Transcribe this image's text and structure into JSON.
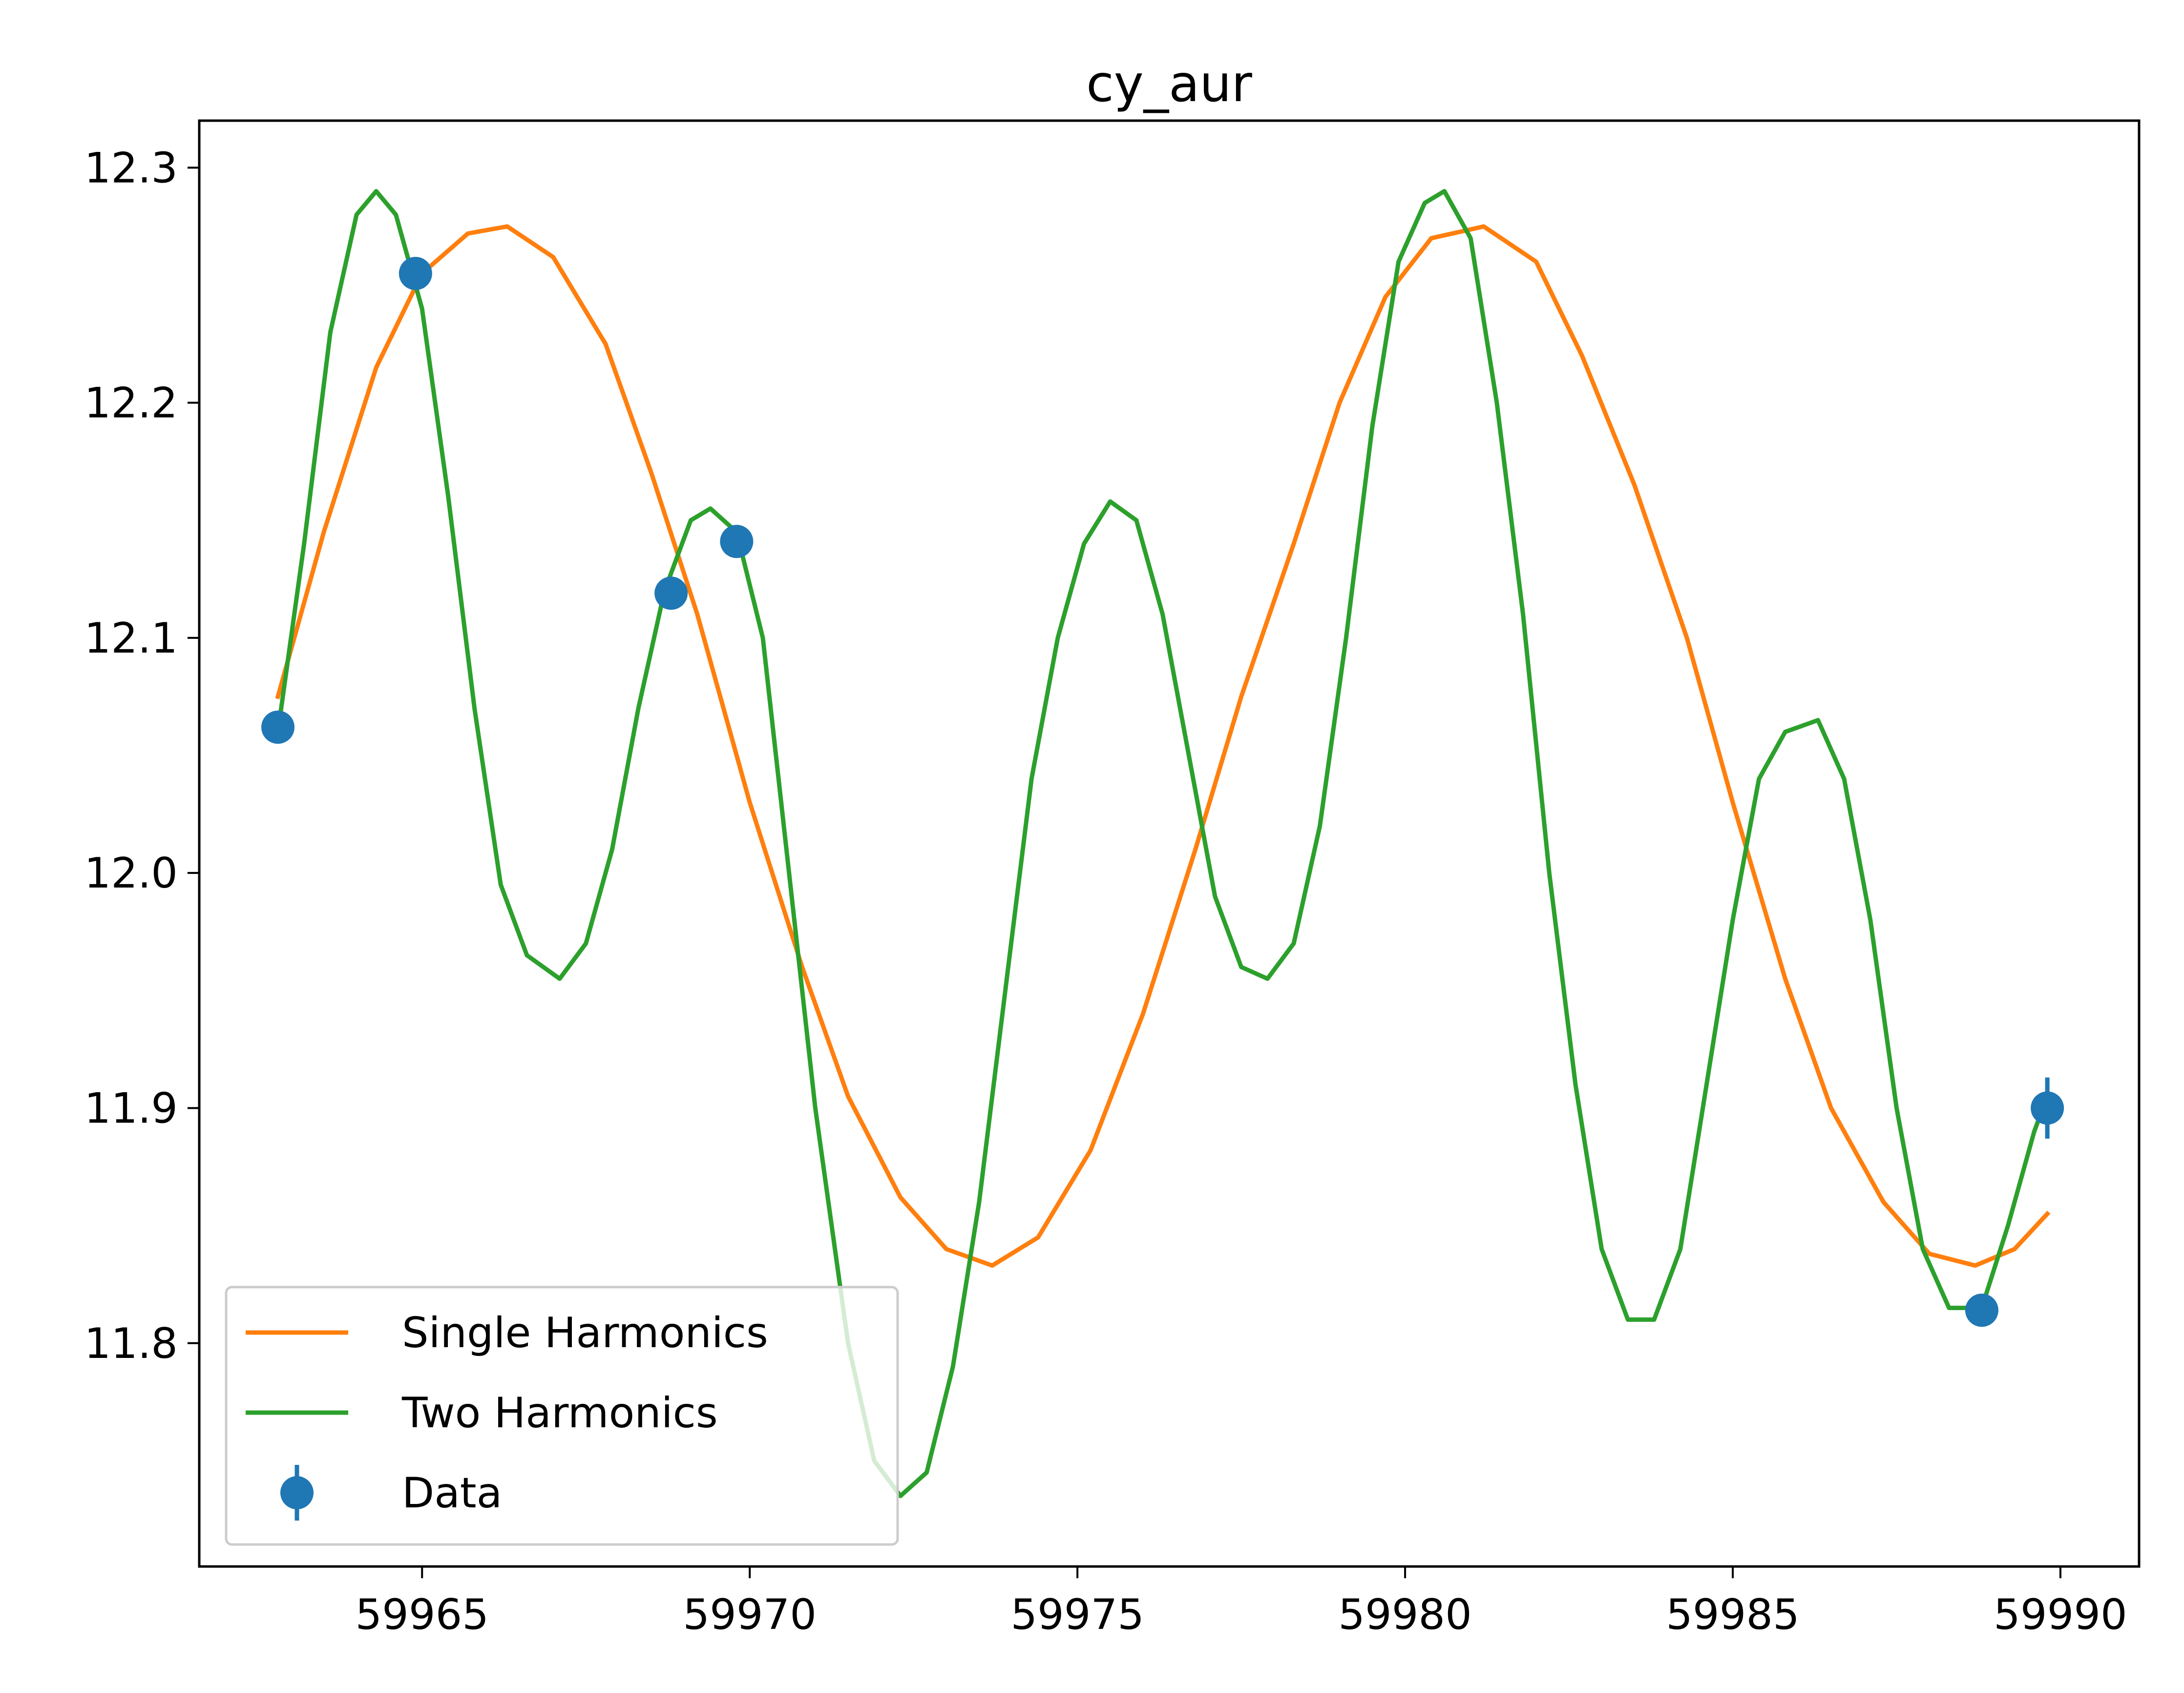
{
  "chart_data": {
    "type": "line",
    "title": "cy_aur",
    "xlabel": "",
    "ylabel": "",
    "xlim": [
      59961.6,
      59991.2
    ],
    "ylim": [
      11.705,
      12.32
    ],
    "xticks": [
      59965,
      59970,
      59975,
      59980,
      59985,
      59990
    ],
    "yticks": [
      11.8,
      11.9,
      12.0,
      12.1,
      12.2,
      12.3
    ],
    "ytick_labels": [
      "11.8",
      "11.9",
      "12.0",
      "12.1",
      "12.2",
      "12.3"
    ],
    "grid": false,
    "legend_position": "lower-left",
    "series": [
      {
        "name": "Single Harmonics",
        "kind": "line",
        "color": "#ff7f0e",
        "x": [
          59962.8,
          59963.5,
          59964.3,
          59965.0,
          59965.7,
          59966.3,
          59967.0,
          59967.8,
          59968.5,
          59969.2,
          59970.0,
          59970.8,
          59971.5,
          59972.3,
          59973.0,
          59973.7,
          59974.4,
          59975.2,
          59976.0,
          59976.8,
          59977.5,
          59978.3,
          59979.0,
          59979.7,
          59980.4,
          59981.2,
          59982.0,
          59982.7,
          59983.5,
          59984.3,
          59985.0,
          59985.8,
          59986.5,
          59987.3,
          59988.0,
          59988.7,
          59989.3,
          59989.8
        ],
        "y": [
          12.075,
          12.145,
          12.215,
          12.255,
          12.272,
          12.275,
          12.262,
          12.225,
          12.17,
          12.11,
          12.03,
          11.96,
          11.905,
          11.862,
          11.84,
          11.833,
          11.845,
          11.882,
          11.94,
          12.01,
          12.075,
          12.14,
          12.2,
          12.245,
          12.27,
          12.275,
          12.26,
          12.22,
          12.165,
          12.1,
          12.03,
          11.955,
          11.9,
          11.86,
          11.838,
          11.833,
          11.84,
          11.855
        ]
      },
      {
        "name": "Two Harmonics",
        "kind": "line",
        "color": "#2ca02c",
        "x": [
          59962.8,
          59963.2,
          59963.6,
          59964.0,
          59964.3,
          59964.6,
          59965.0,
          59965.4,
          59965.8,
          59966.2,
          59966.6,
          59967.1,
          59967.5,
          59967.9,
          59968.3,
          59968.7,
          59969.1,
          59969.4,
          59969.8,
          59970.2,
          59970.6,
          59971.0,
          59971.5,
          59971.9,
          59972.3,
          59972.7,
          59973.1,
          59973.5,
          59973.9,
          59974.3,
          59974.7,
          59975.1,
          59975.5,
          59975.9,
          59976.3,
          59976.7,
          59977.1,
          59977.5,
          59977.9,
          59978.3,
          59978.7,
          59979.1,
          59979.5,
          59979.9,
          59980.3,
          59980.6,
          59981.0,
          59981.4,
          59981.8,
          59982.2,
          59982.6,
          59983.0,
          59983.4,
          59983.8,
          59984.2,
          59984.6,
          59985.0,
          59985.4,
          59985.8,
          59986.3,
          59986.7,
          59987.1,
          59987.5,
          59987.9,
          59988.3,
          59988.8,
          59989.2,
          59989.6,
          59989.8
        ],
        "y": [
          12.06,
          12.14,
          12.23,
          12.28,
          12.29,
          12.28,
          12.24,
          12.16,
          12.07,
          11.995,
          11.965,
          11.955,
          11.97,
          12.01,
          12.07,
          12.12,
          12.15,
          12.155,
          12.145,
          12.1,
          12.0,
          11.9,
          11.8,
          11.75,
          11.735,
          11.745,
          11.79,
          11.86,
          11.95,
          12.04,
          12.1,
          12.14,
          12.158,
          12.15,
          12.11,
          12.05,
          11.99,
          11.96,
          11.955,
          11.97,
          12.02,
          12.1,
          12.19,
          12.26,
          12.285,
          12.29,
          12.27,
          12.2,
          12.11,
          12.0,
          11.91,
          11.84,
          11.81,
          11.81,
          11.84,
          11.91,
          11.98,
          12.04,
          12.06,
          12.065,
          12.04,
          11.98,
          11.9,
          11.84,
          11.815,
          11.815,
          11.85,
          11.89,
          11.905
        ]
      },
      {
        "name": "Data",
        "kind": "errorbar",
        "color": "#1f77b4",
        "x": [
          59962.8,
          59964.9,
          59968.8,
          59969.8,
          59988.8,
          59989.8
        ],
        "y": [
          12.062,
          12.255,
          12.119,
          12.141,
          11.814,
          11.9
        ],
        "yerr": [
          0.003,
          0.003,
          0.003,
          0.003,
          0.003,
          0.013
        ]
      }
    ]
  }
}
